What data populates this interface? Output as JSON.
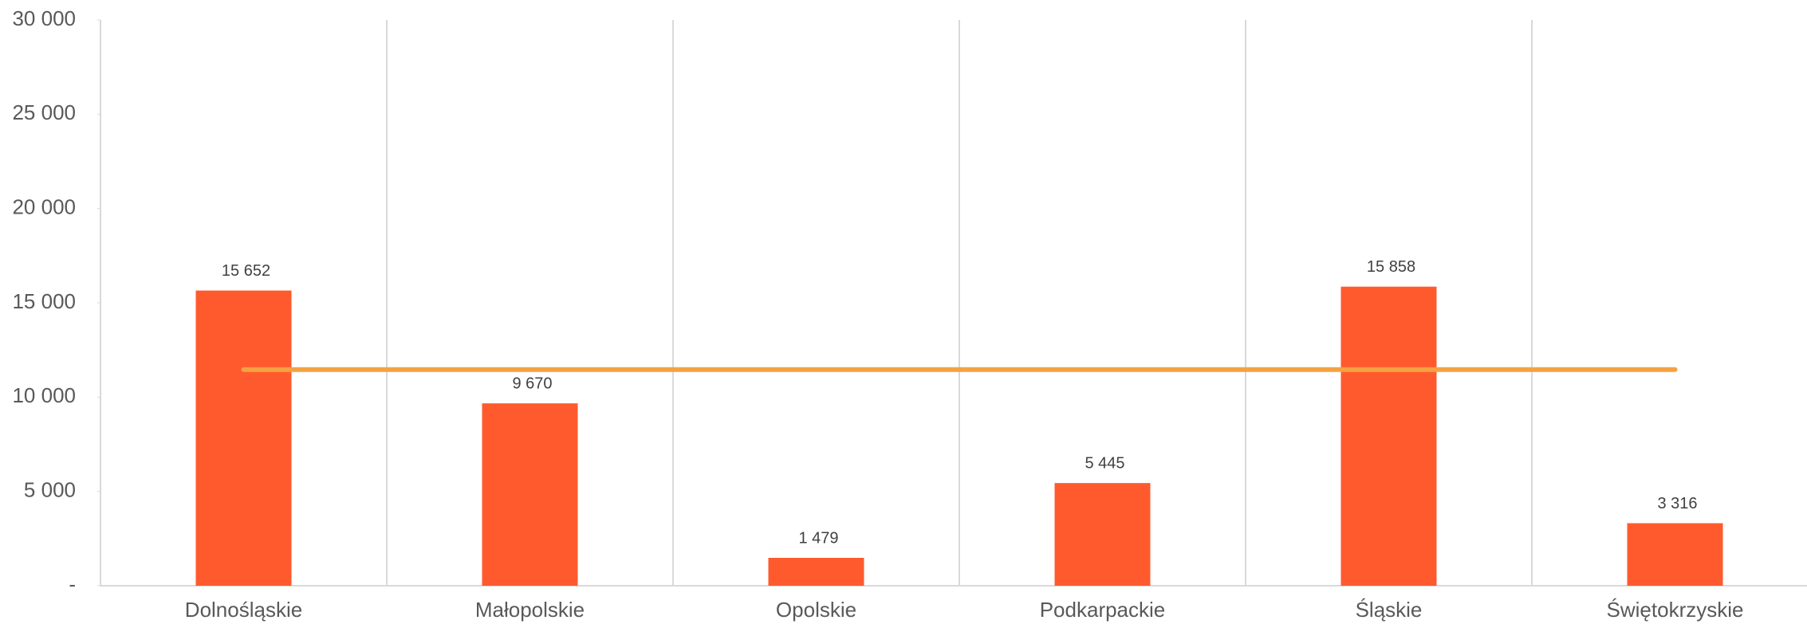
{
  "chart_data": {
    "type": "bar",
    "categories": [
      "Dolnośląskie",
      "Małopolskie",
      "Opolskie",
      "Podkarpackie",
      "Śląskie",
      "Świętokrzyskie"
    ],
    "series": [
      {
        "type": "bar",
        "color": "#ff5a2d",
        "values": [
          15652,
          9670,
          1479,
          5445,
          15858,
          3316
        ],
        "value_labels": [
          "15 652",
          "9 670",
          "1 479",
          "5 445",
          "15 858",
          "3 316"
        ]
      },
      {
        "type": "line",
        "color": "#f5a142",
        "values": [
          11460,
          11460,
          11460,
          11460,
          11460,
          11460
        ]
      }
    ],
    "ylim": [
      0,
      30000
    ],
    "yticks": [
      {
        "value": 0,
        "label": "-"
      },
      {
        "value": 5000,
        "label": "5 000"
      },
      {
        "value": 10000,
        "label": "10 000"
      },
      {
        "value": 15000,
        "label": "15 000"
      },
      {
        "value": 20000,
        "label": "20 000"
      },
      {
        "value": 25000,
        "label": "25 000"
      },
      {
        "value": 30000,
        "label": "30 000"
      }
    ],
    "grid": false
  }
}
